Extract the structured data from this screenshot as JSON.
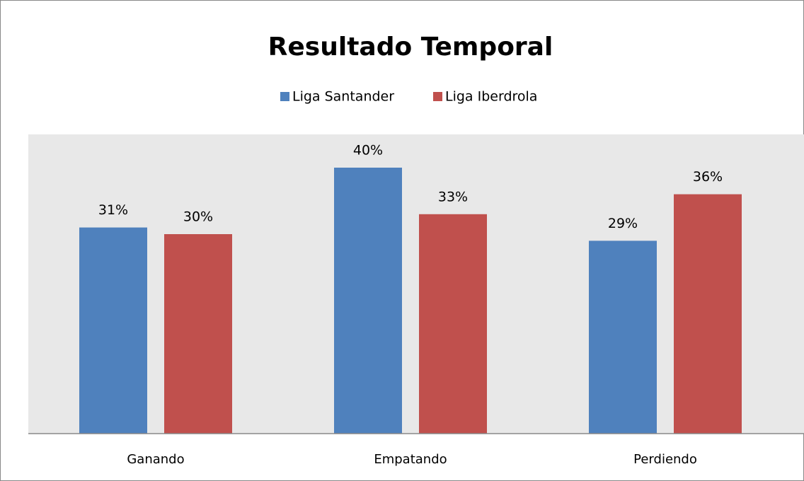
{
  "chart_data": {
    "type": "bar",
    "title": "Resultado Temporal",
    "categories": [
      "Ganando",
      "Empatando",
      "Perdiendo"
    ],
    "series": [
      {
        "name": "Liga Santander",
        "color": "#4f81bd",
        "values": [
          31,
          40,
          29
        ],
        "value_labels": [
          "31%",
          "40%",
          "29%"
        ]
      },
      {
        "name": "Liga Iberdrola",
        "color": "#c0504d",
        "values": [
          30,
          33,
          36
        ],
        "value_labels": [
          "30%",
          "33%",
          "36%"
        ]
      }
    ],
    "ylim": [
      0,
      45
    ],
    "legend": "top"
  }
}
